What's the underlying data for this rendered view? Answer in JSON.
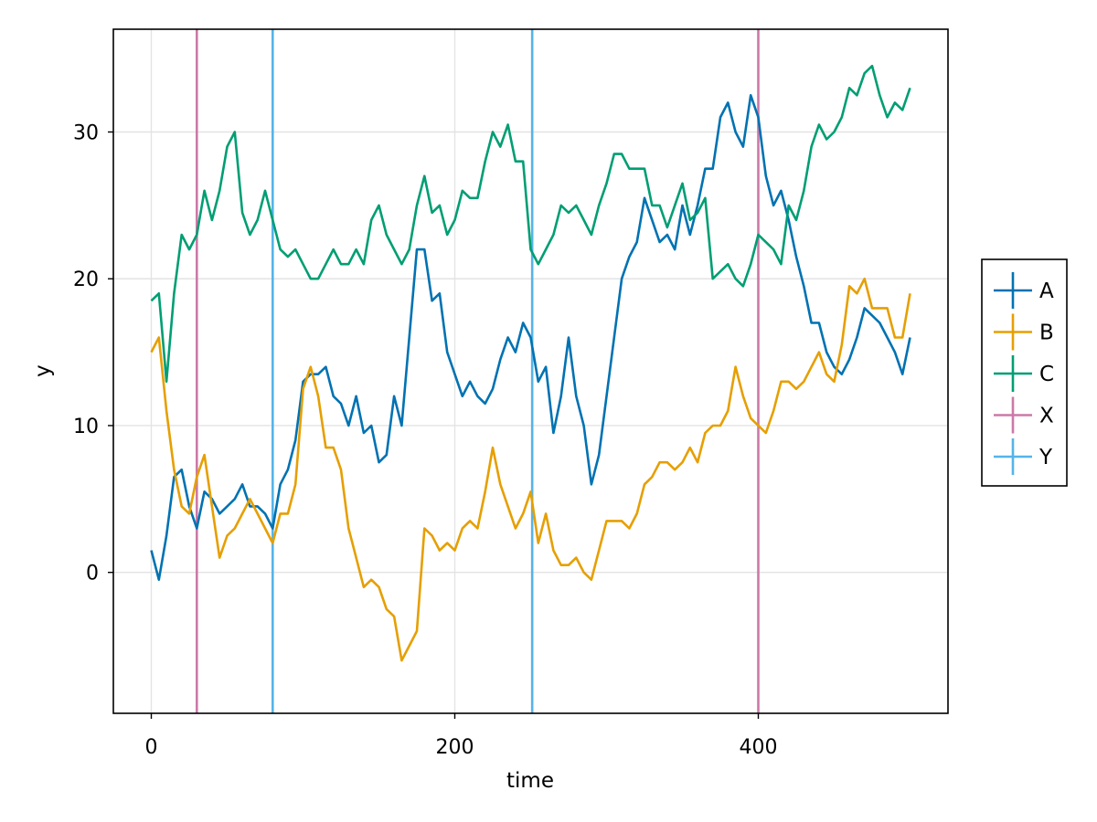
{
  "chart_data": {
    "type": "line",
    "title": "",
    "xlabel": "time",
    "ylabel": "y",
    "xlim": [
      -25,
      525
    ],
    "ylim": [
      -9.6,
      37
    ],
    "xticks": [
      0,
      200,
      400
    ],
    "yticks": [
      0,
      10,
      20,
      30
    ],
    "grid": true,
    "legend_position": "right",
    "series": [
      {
        "name": "A",
        "color": "#0072B2",
        "x": [
          0,
          5,
          10,
          15,
          20,
          25,
          30,
          35,
          40,
          45,
          50,
          55,
          60,
          65,
          70,
          75,
          80,
          85,
          90,
          95,
          100,
          105,
          110,
          115,
          120,
          125,
          130,
          135,
          140,
          145,
          150,
          155,
          160,
          165,
          170,
          175,
          180,
          185,
          190,
          195,
          200,
          205,
          210,
          215,
          220,
          225,
          230,
          235,
          240,
          245,
          250,
          255,
          260,
          265,
          270,
          275,
          280,
          285,
          290,
          295,
          300,
          305,
          310,
          315,
          320,
          325,
          330,
          335,
          340,
          345,
          350,
          355,
          360,
          365,
          370,
          375,
          380,
          385,
          390,
          395,
          400,
          405,
          410,
          415,
          420,
          425,
          430,
          435,
          440,
          445,
          450,
          455,
          460,
          465,
          470,
          475,
          480,
          485,
          490,
          495,
          500
        ],
        "values": [
          1.5,
          -0.5,
          2.5,
          6.5,
          7,
          4.5,
          3,
          5.5,
          5,
          4,
          4.5,
          5,
          6,
          4.5,
          4.5,
          4,
          3,
          6,
          7,
          9,
          13,
          13.5,
          13.5,
          14,
          12,
          11.5,
          10,
          12,
          9.5,
          10,
          7.5,
          8,
          12,
          10,
          16,
          22,
          22,
          18.5,
          19,
          15,
          13.5,
          12,
          13,
          12,
          11.5,
          12.5,
          14.5,
          16,
          15,
          17,
          16,
          13,
          14,
          9.5,
          12,
          16,
          12,
          10,
          6,
          8,
          12,
          16,
          20,
          21.5,
          22.5,
          25.5,
          24,
          22.5,
          23,
          22,
          25,
          23,
          25,
          27.5,
          27.5,
          31,
          32,
          30,
          29,
          32.5,
          31,
          27,
          25,
          26,
          24,
          21.5,
          19.5,
          17,
          17,
          15,
          14,
          13.5,
          14.5,
          16,
          18,
          17.5,
          17,
          16,
          15,
          13.5,
          16
        ]
      },
      {
        "name": "B",
        "color": "#E69F00",
        "x": [
          0,
          5,
          10,
          15,
          20,
          25,
          30,
          35,
          40,
          45,
          50,
          55,
          60,
          65,
          70,
          75,
          80,
          85,
          90,
          95,
          100,
          105,
          110,
          115,
          120,
          125,
          130,
          135,
          140,
          145,
          150,
          155,
          160,
          165,
          170,
          175,
          180,
          185,
          190,
          195,
          200,
          205,
          210,
          215,
          220,
          225,
          230,
          235,
          240,
          245,
          250,
          255,
          260,
          265,
          270,
          275,
          280,
          285,
          290,
          295,
          300,
          305,
          310,
          315,
          320,
          325,
          330,
          335,
          340,
          345,
          350,
          355,
          360,
          365,
          370,
          375,
          380,
          385,
          390,
          395,
          400,
          405,
          410,
          415,
          420,
          425,
          430,
          435,
          440,
          445,
          450,
          455,
          460,
          465,
          470,
          475,
          480,
          485,
          490,
          495,
          500
        ],
        "values": [
          15,
          16,
          11,
          7,
          4.5,
          4,
          6.5,
          8,
          4.5,
          1,
          2.5,
          3,
          4,
          5,
          4,
          3,
          2,
          4,
          4,
          6,
          12.5,
          14,
          12,
          8.5,
          8.5,
          7,
          3,
          1,
          -1,
          -0.5,
          -1,
          -2.5,
          -3,
          -6,
          -5,
          -4,
          3,
          2.5,
          1.5,
          2,
          1.5,
          3,
          3.5,
          3,
          5.5,
          8.5,
          6,
          4.5,
          3,
          4,
          5.5,
          2,
          4,
          1.5,
          0.5,
          0.5,
          1,
          0,
          -0.5,
          1.5,
          3.5,
          3.5,
          3.5,
          3,
          4,
          6,
          6.5,
          7.5,
          7.5,
          7,
          7.5,
          8.5,
          7.5,
          9.5,
          10,
          10,
          11,
          14,
          12,
          10.5,
          10,
          9.5,
          11,
          13,
          13,
          12.5,
          13,
          14,
          15,
          13.5,
          13,
          15.5,
          19.5,
          19,
          20,
          18,
          18,
          18,
          16,
          16,
          19
        ]
      },
      {
        "name": "C",
        "color": "#009E73",
        "x": [
          0,
          5,
          10,
          15,
          20,
          25,
          30,
          35,
          40,
          45,
          50,
          55,
          60,
          65,
          70,
          75,
          80,
          85,
          90,
          95,
          100,
          105,
          110,
          115,
          120,
          125,
          130,
          135,
          140,
          145,
          150,
          155,
          160,
          165,
          170,
          175,
          180,
          185,
          190,
          195,
          200,
          205,
          210,
          215,
          220,
          225,
          230,
          235,
          240,
          245,
          250,
          255,
          260,
          265,
          270,
          275,
          280,
          285,
          290,
          295,
          300,
          305,
          310,
          315,
          320,
          325,
          330,
          335,
          340,
          345,
          350,
          355,
          360,
          365,
          370,
          375,
          380,
          385,
          390,
          395,
          400,
          405,
          410,
          415,
          420,
          425,
          430,
          435,
          440,
          445,
          450,
          455,
          460,
          465,
          470,
          475,
          480,
          485,
          490,
          495,
          500
        ],
        "values": [
          18.5,
          19,
          13,
          19,
          23,
          22,
          23,
          26,
          24,
          26,
          29,
          30,
          24.5,
          23,
          24,
          26,
          24,
          22,
          21.5,
          22,
          21,
          20,
          20,
          21,
          22,
          21,
          21,
          22,
          21,
          24,
          25,
          23,
          22,
          21,
          22,
          25,
          27,
          24.5,
          25,
          23,
          24,
          26,
          25.5,
          25.5,
          28,
          30,
          29,
          30.5,
          28,
          28,
          22,
          21,
          22,
          23,
          25,
          24.5,
          25,
          24,
          23,
          25,
          26.5,
          28.5,
          28.5,
          27.5,
          27.5,
          27.5,
          25,
          25,
          23.5,
          25,
          26.5,
          24,
          24.5,
          25.5,
          20,
          20.5,
          21,
          20,
          19.5,
          21,
          23,
          22.5,
          22,
          21,
          25,
          24,
          26,
          29,
          30.5,
          29.5,
          30,
          31,
          33,
          32.5,
          34,
          34.5,
          32.5,
          31,
          32,
          31.5,
          33
        ]
      }
    ],
    "vlines": [
      {
        "name": "X",
        "color": "#CC79A7",
        "x": [
          30,
          400
        ]
      },
      {
        "name": "Y",
        "color": "#56B4E9",
        "x": [
          80,
          251
        ]
      }
    ],
    "legend": [
      "A",
      "B",
      "C",
      "X",
      "Y"
    ]
  }
}
